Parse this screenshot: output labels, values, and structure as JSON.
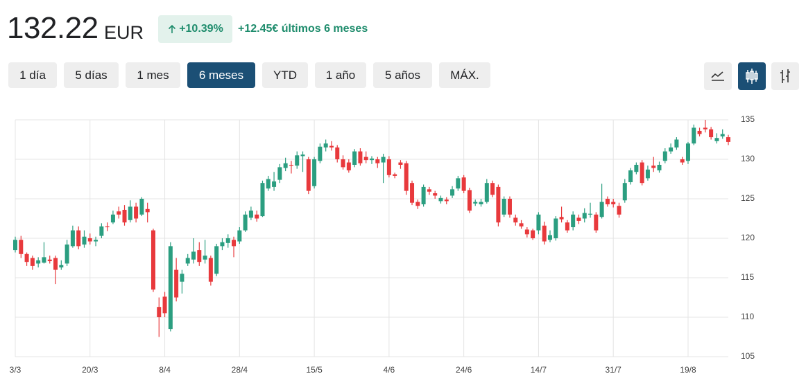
{
  "header": {
    "price": "132.22",
    "currency": "EUR",
    "change_pct": "+10.39%",
    "change_text": "+12.45€ últimos 6 meses"
  },
  "ranges": [
    "1 día",
    "5 días",
    "1 mes",
    "6 meses",
    "YTD",
    "1 año",
    "5 años",
    "MÁX."
  ],
  "active_range": 3,
  "chart_data": {
    "type": "candlestick",
    "x": [
      "3/3",
      null,
      null,
      null,
      null,
      null,
      null,
      null,
      null,
      null,
      null,
      null,
      null,
      "20/3",
      null,
      null,
      null,
      null,
      null,
      null,
      null,
      null,
      null,
      null,
      null,
      null,
      "8/4",
      null,
      null,
      null,
      null,
      null,
      null,
      null,
      null,
      null,
      null,
      null,
      null,
      "28/4",
      null,
      null,
      null,
      null,
      null,
      null,
      null,
      null,
      null,
      null,
      null,
      null,
      "15/5",
      null,
      null,
      null,
      null,
      null,
      null,
      null,
      null,
      null,
      null,
      null,
      null,
      "4/6",
      null,
      null,
      null,
      null,
      null,
      null,
      null,
      null,
      null,
      null,
      null,
      null,
      "24/6",
      null,
      null,
      null,
      null,
      null,
      null,
      null,
      null,
      null,
      null,
      null,
      null,
      "14/7",
      null,
      null,
      null,
      null,
      null,
      null,
      null,
      null,
      null,
      null,
      null,
      null,
      "31/7",
      null,
      null,
      null,
      null,
      null,
      null,
      null,
      null,
      null,
      null,
      null,
      null,
      "19/8",
      null,
      null,
      null,
      null,
      null,
      null,
      null
    ],
    "open": [
      118.5,
      119.8,
      118,
      117.5,
      116.8,
      116.9,
      117.3,
      117.5,
      116.3,
      116.8,
      119,
      121,
      119.2,
      120,
      119.6,
      120.3,
      121.5,
      122,
      123.4,
      123.6,
      122.3,
      124,
      123,
      123.7,
      121,
      111.3,
      112.6,
      108.5,
      116,
      114.5,
      116.8,
      117.3,
      118.5,
      117.3,
      117.5,
      115.5,
      119,
      119.4,
      119.8,
      119.6,
      121,
      122.6,
      123,
      122.8,
      126.3,
      126.5,
      127.4,
      128.9,
      129.3,
      129.2,
      130.4,
      130,
      126.6,
      129.8,
      131.5,
      131.7,
      131.5,
      130,
      129.6,
      129.3,
      131,
      130.3,
      129.9,
      130,
      129.6,
      130,
      128.1,
      129.6,
      129.5,
      127,
      124.6,
      124.3,
      126.2,
      125.7,
      124.7,
      124.9,
      125.4,
      126.3,
      127.7,
      126.1,
      124.4,
      124.3,
      124.6,
      127,
      126.5,
      123,
      125,
      122.6,
      121.9,
      121.1,
      121,
      121,
      121.6,
      119.8,
      120,
      122.7,
      122,
      121.4,
      122.6,
      122.5,
      123,
      123,
      122.7,
      125,
      124.6,
      124.1,
      124.8,
      127.1,
      128.4,
      129.6,
      127.6,
      129.2,
      128.6,
      129.8,
      131,
      131.5,
      130,
      129.8,
      132,
      133.6,
      134,
      133.8,
      132.3,
      132.9,
      132.8
    ],
    "high": [
      120.2,
      120.3,
      118.2,
      117.8,
      117.6,
      119.5,
      117.8,
      117.8,
      117.2,
      119.8,
      121.6,
      121.5,
      121,
      120.6,
      120.2,
      121.9,
      122,
      123.5,
      124,
      124.2,
      124.8,
      124.5,
      125.2,
      124.5,
      121.2,
      112.5,
      113.2,
      119.5,
      117.5,
      116,
      118,
      120,
      119.5,
      119.8,
      117.8,
      119.3,
      120,
      120.5,
      120.2,
      121.4,
      123.4,
      124,
      123.5,
      127.3,
      127.9,
      128.4,
      129.4,
      130.2,
      129.8,
      131,
      131,
      130.3,
      130.3,
      132,
      132.5,
      132.3,
      131.8,
      130.5,
      130,
      131.3,
      131.4,
      131,
      130.4,
      130.3,
      130.7,
      130.4,
      128.3,
      129.9,
      129.8,
      127.3,
      124.9,
      126.8,
      126.5,
      126,
      125.4,
      125.2,
      126.6,
      127.9,
      128,
      126.4,
      124.9,
      125,
      127.5,
      127.3,
      126.8,
      125.3,
      125.3,
      123,
      122.3,
      121.4,
      121.2,
      123.3,
      122.1,
      121,
      122.8,
      124,
      122.3,
      123.4,
      123,
      123.8,
      124.5,
      123.3,
      126.9,
      125.3,
      125,
      124.5,
      127.5,
      128.9,
      129.6,
      129.9,
      129.2,
      130.3,
      129.7,
      131.4,
      132,
      132.8,
      130.3,
      132.2,
      134.4,
      134,
      135,
      134.1,
      133.3,
      133.8,
      133.1
    ],
    "low": [
      118.2,
      117.5,
      116.5,
      116,
      116.3,
      116.8,
      116.8,
      114.2,
      116,
      116.5,
      118.8,
      118.6,
      118.8,
      119.2,
      119,
      120,
      120.9,
      121.8,
      122.5,
      121.6,
      122,
      122,
      122.8,
      122,
      113.2,
      107.5,
      110,
      108.2,
      112,
      113,
      116.5,
      116.8,
      116.5,
      116.8,
      114,
      115.2,
      118.5,
      118.8,
      117.6,
      119.3,
      120.8,
      122.3,
      122.1,
      122.7,
      126,
      126,
      127,
      128.5,
      128.2,
      128.8,
      128.4,
      125.6,
      126.3,
      129.5,
      131,
      131.1,
      129.6,
      128.7,
      128.3,
      129,
      129.2,
      129.5,
      129.4,
      128.9,
      127,
      127.7,
      127.6,
      128.8,
      125.5,
      124.2,
      123.7,
      124,
      125.5,
      125,
      124.4,
      124.3,
      125.1,
      126,
      125.7,
      123.2,
      124.1,
      124,
      124.4,
      125.2,
      121.5,
      122.7,
      122.6,
      121.6,
      121.2,
      120.1,
      119.8,
      120.5,
      119.2,
      119.5,
      119.7,
      122,
      120.7,
      121,
      121.8,
      122,
      122.6,
      120.7,
      122.5,
      124,
      123.9,
      122.6,
      124.5,
      126.8,
      128.1,
      126.7,
      127.3,
      128.4,
      128.3,
      129.5,
      130.7,
      131.2,
      129.3,
      129.4,
      131.8,
      132.9,
      133.4,
      132.5,
      132,
      132.6,
      131.8
    ],
    "close": [
      119.8,
      118,
      117,
      116.5,
      117.2,
      117.6,
      117.1,
      116,
      116.6,
      119.2,
      121,
      119,
      120.2,
      119.6,
      119.8,
      121.5,
      121.4,
      123,
      123,
      122,
      124,
      122.5,
      125,
      123.3,
      113.5,
      110,
      110.5,
      119,
      112.5,
      115.5,
      117.5,
      118.3,
      117,
      117.8,
      114.5,
      119,
      119.5,
      120,
      119,
      121,
      123,
      123.5,
      122.5,
      127,
      127.5,
      127.2,
      129,
      129.5,
      129.2,
      130.5,
      130.6,
      126,
      130,
      131.6,
      132,
      131.5,
      130,
      129,
      128.6,
      131,
      129.5,
      129.9,
      130.1,
      129.5,
      130.3,
      128,
      127.9,
      129.3,
      126,
      124.5,
      124.1,
      126.5,
      125.9,
      125.4,
      125.1,
      124.7,
      126.2,
      127.6,
      126,
      123.5,
      124.6,
      124.6,
      127,
      125.5,
      122,
      125,
      123,
      122,
      121.5,
      120.5,
      120,
      123,
      119.6,
      120.4,
      122.5,
      122.4,
      121,
      123,
      122.2,
      123.2,
      123.1,
      121,
      124.6,
      124.3,
      124.3,
      123,
      127,
      128.6,
      129.3,
      127,
      128.7,
      128.9,
      129.3,
      131,
      131.5,
      132.5,
      129.6,
      132,
      134,
      133.2,
      133.8,
      132.8,
      132.7,
      133.2,
      132.2
    ],
    "up_color": "#2b9e80",
    "down_color": "#e8393c",
    "ylim": [
      105,
      135
    ],
    "yticks": [
      105,
      110,
      115,
      120,
      125,
      130,
      135
    ],
    "grid": true
  }
}
